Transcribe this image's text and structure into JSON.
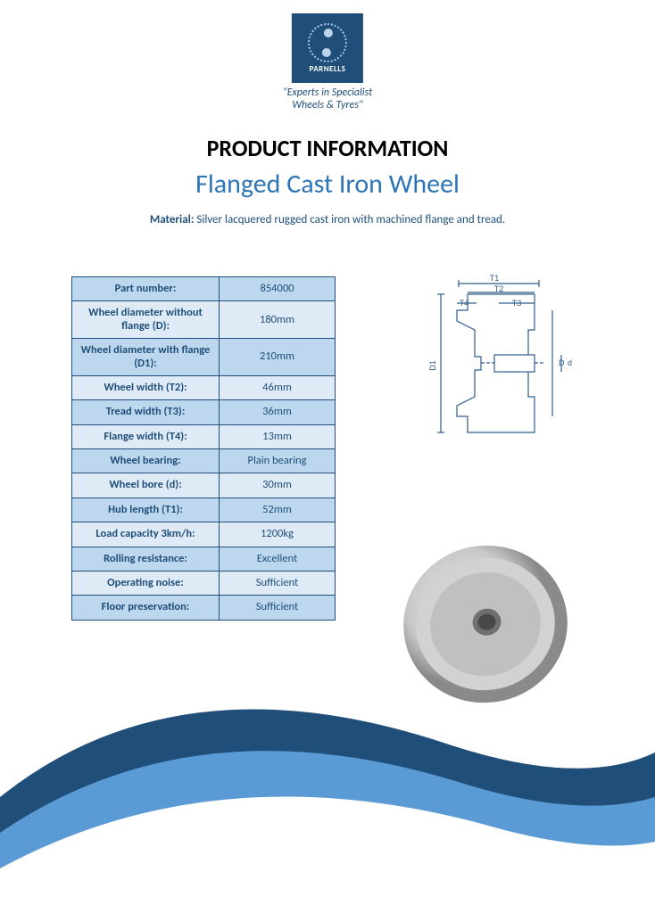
{
  "brand": {
    "name": "PARNELLS",
    "tagline_line1": "\"Experts in Specialist",
    "tagline_line2": "Wheels & Tyres\"",
    "logo_bg": "#1f4e79",
    "logo_accent": "#bcd4e9"
  },
  "headings": {
    "title": "PRODUCT INFORMATION",
    "subtitle": "Flanged Cast Iron Wheel"
  },
  "material": {
    "label": "Material:",
    "value": "Silver lacquered rugged cast iron with machined flange and tread."
  },
  "spec_table": {
    "header_color": "#1f4e79",
    "border_color": "#1f4e79",
    "shade_a": "#bdd7ee",
    "shade_b": "#deebf7",
    "rows": [
      {
        "label": "Part number:",
        "value": "854000"
      },
      {
        "label": "Wheel diameter without flange (D):",
        "value": "180mm"
      },
      {
        "label": "Wheel diameter with flange (D1):",
        "value": "210mm"
      },
      {
        "label": "Wheel width (T2):",
        "value": "46mm"
      },
      {
        "label": "Tread width (T3):",
        "value": "36mm"
      },
      {
        "label": "Flange width (T4):",
        "value": "13mm"
      },
      {
        "label": "Wheel bearing:",
        "value": "Plain bearing"
      },
      {
        "label": "Wheel bore (d):",
        "value": "30mm"
      },
      {
        "label": "Hub length (T1):",
        "value": "52mm"
      },
      {
        "label": "Load capacity 3km/h:",
        "value": "1200kg"
      },
      {
        "label": "Rolling resistance:",
        "value": "Excellent"
      },
      {
        "label": "Operating noise:",
        "value": "Sufficient"
      },
      {
        "label": "Floor preservation:",
        "value": "Sufficient"
      }
    ]
  },
  "diagram": {
    "stroke": "#2e5c8a",
    "fill": "#ffffff",
    "label_fontsize": 9,
    "labels": {
      "T1": "T1",
      "T2": "T2",
      "T3": "T3",
      "T4": "T4",
      "D": "D",
      "D1": "D1",
      "d": "d"
    }
  },
  "swoosh": {
    "outer_color": "#1f4e79",
    "inner_color": "#5b9bd5"
  },
  "wheel_render": {
    "base_color": "#c8c8c8",
    "highlight": "#e8e8e8",
    "shadow": "#8a8a8a"
  }
}
